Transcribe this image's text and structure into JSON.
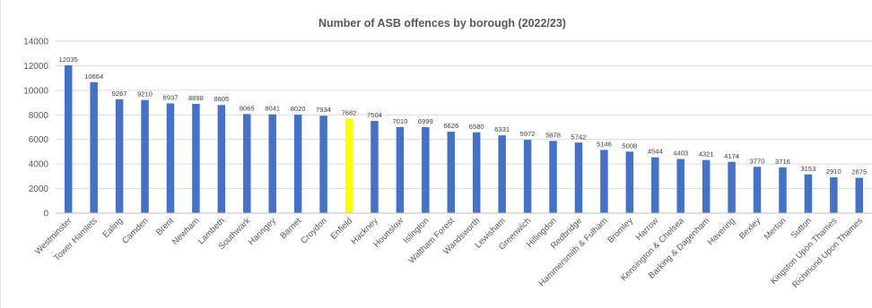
{
  "chart_data": {
    "type": "bar",
    "title": "Number of ASB offences by borough (2022/23)",
    "xlabel": "",
    "ylabel": "",
    "ylim": [
      0,
      14000
    ],
    "yticks": [
      0,
      2000,
      4000,
      6000,
      8000,
      10000,
      12000,
      14000
    ],
    "grid": true,
    "legend": "none",
    "colors": {
      "default": "#4472C4",
      "highlight": "#FFFF00"
    },
    "highlight_category": "Enfield",
    "categories": [
      "Westminster",
      "Tower Hamlets",
      "Ealing",
      "Camden",
      "Brent",
      "Newham",
      "Lambeth",
      "Southwark",
      "Haringey",
      "Barnet",
      "Croydon",
      "Enfield",
      "Hackney",
      "Hounslow",
      "Islington",
      "Waltham Forest",
      "Wandsworth",
      "Lewisham",
      "Greenwich",
      "Hillingdon",
      "Redbridge",
      "Hammersmith & Fulham",
      "Bromley",
      "Harrow",
      "Kensington & Chelsea",
      "Barking & Dagenham",
      "Havering",
      "Bexley",
      "Merton",
      "Sutton",
      "Kingston Upon Thames",
      "Richmond Upon Thames"
    ],
    "values": [
      12035,
      10664,
      9267,
      9210,
      8937,
      8898,
      8805,
      8065,
      8041,
      8020,
      7934,
      7682,
      7504,
      7010,
      6999,
      6626,
      6580,
      6331,
      5972,
      5878,
      5742,
      5146,
      5008,
      4544,
      4403,
      4321,
      4174,
      3770,
      3716,
      3153,
      2910,
      2875
    ]
  }
}
